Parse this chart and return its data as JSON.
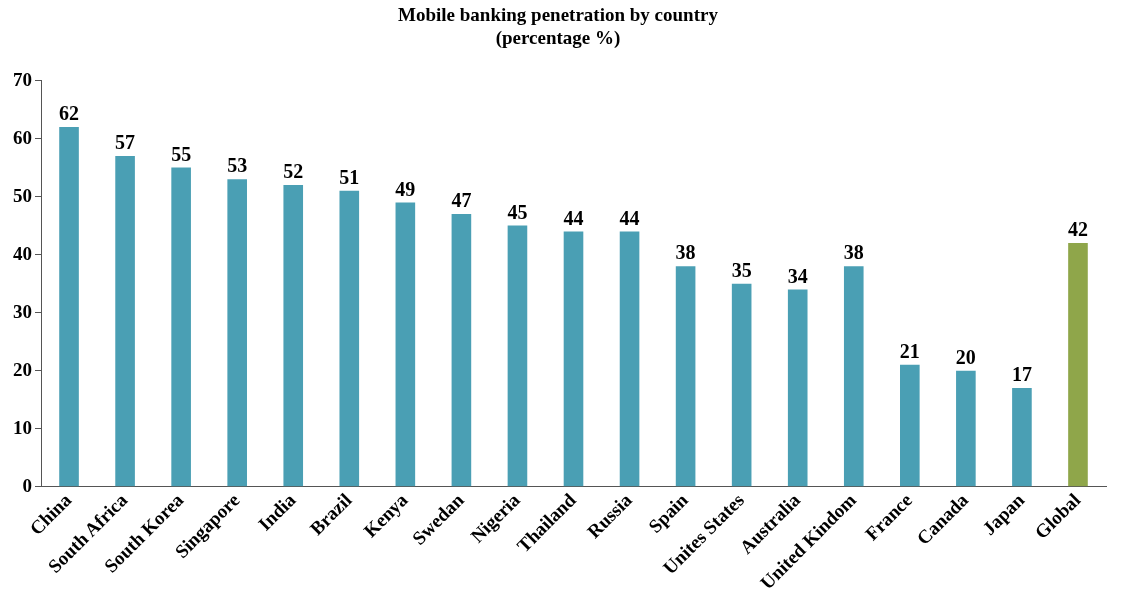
{
  "chart_data": {
    "type": "bar",
    "title": "Mobile banking penetration by country\n(percentage %)",
    "categories": [
      "China",
      "South Africa",
      "South Korea",
      "Singapore",
      "India",
      "Brazil",
      "Kenya",
      "Swedan",
      "Nigeria",
      "Thailand",
      "Russia",
      "Spain",
      "Unites States",
      "Australia",
      "United Kindom",
      "France",
      "Canada",
      "Japan",
      "Global"
    ],
    "values": [
      62,
      57,
      55,
      53,
      52,
      51,
      49,
      47,
      45,
      44,
      44,
      38,
      35,
      34,
      38,
      21,
      20,
      17,
      42
    ],
    "colors": [
      "#4a9fb4",
      "#4a9fb4",
      "#4a9fb4",
      "#4a9fb4",
      "#4a9fb4",
      "#4a9fb4",
      "#4a9fb4",
      "#4a9fb4",
      "#4a9fb4",
      "#4a9fb4",
      "#4a9fb4",
      "#4a9fb4",
      "#4a9fb4",
      "#4a9fb4",
      "#4a9fb4",
      "#4a9fb4",
      "#4a9fb4",
      "#4a9fb4",
      "#8fa64a"
    ],
    "ylim": [
      0,
      70
    ],
    "yticks": [
      0,
      10,
      20,
      30,
      40,
      50,
      60,
      70
    ],
    "grid": false,
    "legend": false,
    "data_labels": true
  }
}
